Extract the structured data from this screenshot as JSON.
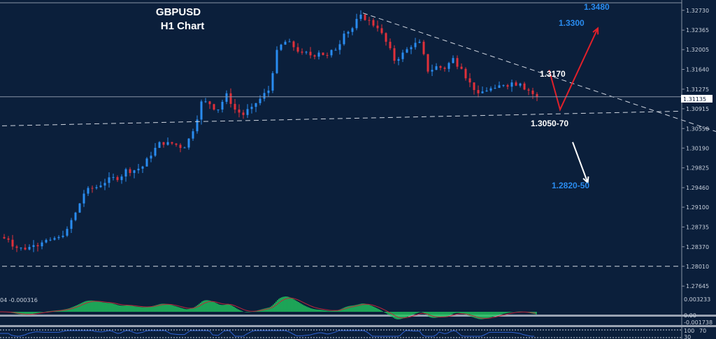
{
  "chart_data": {
    "type": "candlestick",
    "title": "GBPUSD",
    "subtitle": "H1 Chart",
    "ylim": [
      1.2748,
      1.3292
    ],
    "y_ticks": [
      "1.32730",
      "1.32365",
      "1.32005",
      "1.31640",
      "1.31275",
      "1.30915",
      "1.30550",
      "1.30190",
      "1.29825",
      "1.29460",
      "1.29100",
      "1.28735",
      "1.28370",
      "1.28010",
      "1.27645"
    ],
    "current_price": "1.31135",
    "closes": [
      1.2855,
      1.285,
      1.2835,
      1.2832,
      1.284,
      1.2845,
      1.285,
      1.2855,
      1.287,
      1.29,
      1.2935,
      1.2945,
      1.295,
      1.2965,
      1.296,
      1.298,
      1.2978,
      1.2985,
      1.3005,
      1.303,
      1.303,
      1.3025,
      1.302,
      1.305,
      1.3105,
      1.31,
      1.309,
      1.312,
      1.309,
      1.308,
      1.3095,
      1.311,
      1.3125,
      1.32,
      1.3215,
      1.3205,
      1.3195,
      1.319,
      1.3195,
      1.319,
      1.32,
      1.323,
      1.324,
      1.3265,
      1.3255,
      1.324,
      1.3215,
      1.318,
      1.3195,
      1.3205,
      1.3215,
      1.316,
      1.317,
      1.3165,
      1.3185,
      1.3165,
      1.314,
      1.312,
      1.3125,
      1.313,
      1.3135,
      1.314,
      1.3138,
      1.3125,
      1.3113
    ],
    "lines": [
      {
        "name": "descending-trendline",
        "from": [
          43,
          1.3268
        ],
        "to": [
          85,
          1.305
        ],
        "style": "dashed"
      },
      {
        "name": "support-line",
        "from": [
          0,
          1.306
        ],
        "to": [
          81,
          1.3087
        ],
        "style": "dashed"
      },
      {
        "name": "lower-support-line",
        "from": [
          0,
          1.2801
        ],
        "to": [
          81,
          1.2801
        ],
        "style": "dashed"
      }
    ],
    "annotations": [
      {
        "text": "1.3480",
        "color": "#2a8cf0"
      },
      {
        "text": "1.3300",
        "color": "#2a8cf0"
      },
      {
        "text": "1.3170",
        "color": "#ffffff"
      },
      {
        "text": "1.3050-70",
        "color": "#ffffff"
      },
      {
        "text": "1.2820-50",
        "color": "#2a8cf0"
      }
    ],
    "scenario_arrows": [
      {
        "color": "#e0202a",
        "path": [
          [
            65.2,
            1.3163
          ],
          [
            66.5,
            1.309
          ],
          [
            71,
            1.324
          ]
        ]
      },
      {
        "color": "#ffffff",
        "path": [
          [
            68,
            1.303
          ],
          [
            69.8,
            1.2955
          ]
        ]
      }
    ],
    "macd": {
      "label": "04 -0.000316",
      "y_ticks": [
        "0.003233",
        "0.00",
        "-0.001738"
      ],
      "hist_color": "#22c55e",
      "signal_color": "#c0263a"
    },
    "rsi": {
      "y_ticks": [
        "100",
        "70",
        "30"
      ],
      "line_color": "#2f63d6"
    }
  },
  "colors": {
    "background": "#0b1f3b",
    "bull": "#2a8cf0",
    "bear": "#e0303a"
  }
}
